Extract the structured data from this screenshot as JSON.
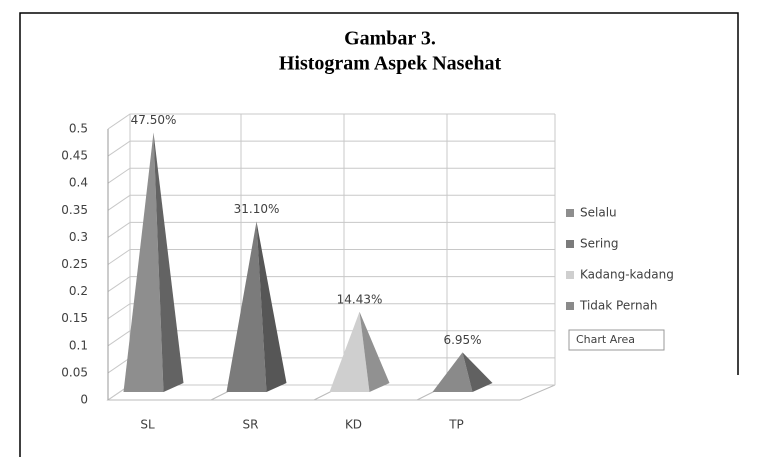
{
  "chart_data": {
    "type": "bar",
    "title": [
      "Gambar 3.",
      "Histogram Aspek Nasehat"
    ],
    "categories": [
      "SL",
      "SR",
      "KD",
      "TP"
    ],
    "series": [
      {
        "name": "Selalu",
        "color": "#8e8e8e",
        "values": [
          0.475,
          null,
          null,
          null
        ],
        "value_labels": [
          "47.50%",
          null,
          null,
          null
        ]
      },
      {
        "name": "Sering",
        "color": "#7b7b7b",
        "values": [
          null,
          0.311,
          null,
          null
        ],
        "value_labels": [
          null,
          "31.10%",
          null,
          null
        ]
      },
      {
        "name": "Kadang-kadang",
        "color": "#cfcfcf",
        "values": [
          null,
          null,
          0.1443,
          null
        ],
        "value_labels": [
          null,
          null,
          "14.43%",
          null
        ]
      },
      {
        "name": "Tidak Pernah",
        "color": "#8a8a8a",
        "values": [
          null,
          null,
          null,
          0.0695
        ],
        "value_labels": [
          null,
          null,
          null,
          "6.95%"
        ]
      }
    ],
    "ylim": [
      0,
      0.5
    ],
    "yticks": [
      0,
      0.05,
      0.1,
      0.15,
      0.2,
      0.25,
      0.3,
      0.35,
      0.4,
      0.45,
      0.5
    ],
    "grid": true,
    "legend": "right",
    "tooltip": "Chart Area"
  }
}
